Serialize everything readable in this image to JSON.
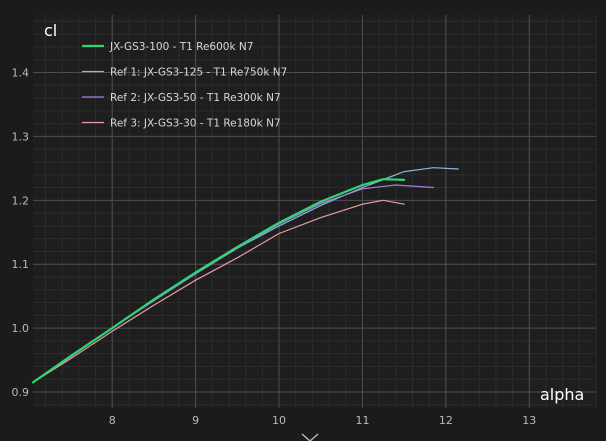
{
  "colors": {
    "background": "#1b1b1b",
    "plot_background": "#1e1e1e",
    "grid_major": "#4e4e4e",
    "grid_minor": "#2c2c2c",
    "axis_text": "#b9b9b9"
  },
  "icons": {
    "collapse": "chevron-down-icon"
  },
  "chart_data": {
    "type": "line",
    "title": "",
    "xlabel": "alpha",
    "ylabel": "cl",
    "xlim": [
      7.05,
      13.8
    ],
    "ylim": [
      0.875,
      1.49
    ],
    "x_ticks": [
      8,
      9,
      10,
      11,
      12,
      13
    ],
    "y_ticks": [
      0.9,
      1.0,
      1.1,
      1.2,
      1.3,
      1.4
    ],
    "x_tick_labels": [
      "8",
      "9",
      "10",
      "11",
      "12",
      "13"
    ],
    "y_tick_labels": [
      "0.9",
      "1.0",
      "1.1",
      "1.2",
      "1.3",
      "1.4"
    ],
    "grid": true,
    "legend_position": "top-left",
    "series": [
      {
        "name": "Ref 1: JX-GS3-125 - T1 Re750k N7",
        "color": "#8cb4dc",
        "width": 1.2,
        "x": [
          7.05,
          7.5,
          8.0,
          8.5,
          9.0,
          9.5,
          10.0,
          10.5,
          11.0,
          11.5,
          11.85,
          12.15
        ],
        "y": [
          0.915,
          0.955,
          1.0,
          1.043,
          1.085,
          1.125,
          1.16,
          1.192,
          1.22,
          1.245,
          1.251,
          1.249
        ]
      },
      {
        "name": "Ref 2: JX-GS3-50 - T1 Re300k N7",
        "color": "#a77ee0",
        "width": 1.2,
        "x": [
          7.05,
          7.5,
          8.0,
          8.5,
          9.0,
          9.5,
          10.0,
          10.5,
          11.0,
          11.4,
          11.85
        ],
        "y": [
          0.915,
          0.955,
          1.0,
          1.043,
          1.085,
          1.125,
          1.163,
          1.195,
          1.218,
          1.224,
          1.22
        ]
      },
      {
        "name": "Ref 3: JX-GS3-30 - T1 Re180k N7",
        "color": "#e89aa8",
        "width": 1.2,
        "x": [
          7.05,
          7.5,
          8.0,
          8.5,
          9.0,
          9.5,
          10.0,
          10.5,
          11.0,
          11.25,
          11.5
        ],
        "y": [
          0.915,
          0.952,
          0.995,
          1.036,
          1.075,
          1.11,
          1.148,
          1.173,
          1.194,
          1.2,
          1.194
        ]
      },
      {
        "name": "JX-GS3-100 - T1 Re600k N7",
        "color": "#2ed573",
        "width": 2.2,
        "x": [
          7.05,
          7.5,
          8.0,
          8.5,
          9.0,
          9.5,
          10.0,
          10.5,
          11.0,
          11.25,
          11.5
        ],
        "y": [
          0.915,
          0.956,
          1.0,
          1.045,
          1.087,
          1.127,
          1.165,
          1.198,
          1.224,
          1.233,
          1.232
        ]
      }
    ],
    "legend_order": [
      3,
      0,
      1,
      2
    ]
  }
}
